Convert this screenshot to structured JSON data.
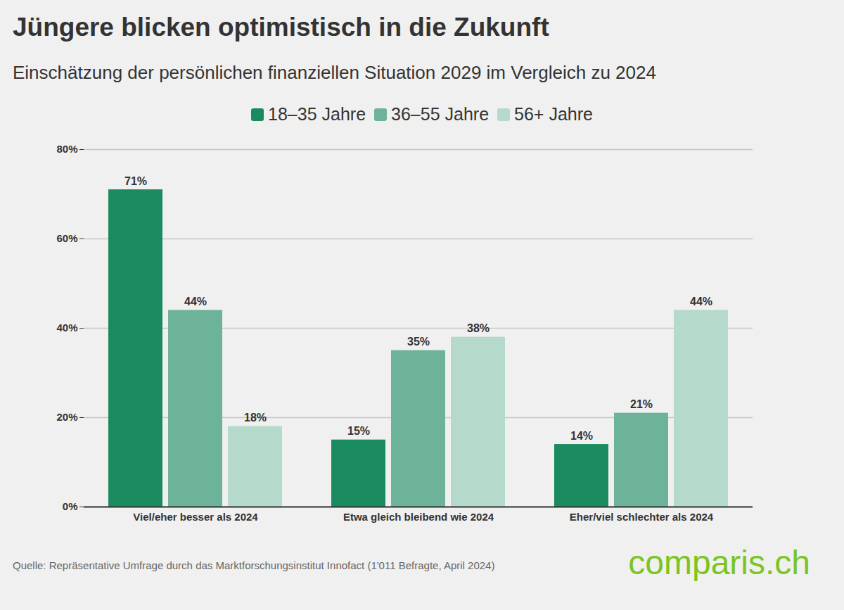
{
  "chart_data": {
    "type": "bar",
    "title": "Jüngere blicken optimistisch in die Zukunft",
    "subtitle": "Einschätzung der persönlichen finanziellen Situation 2029 im Vergleich zu 2024",
    "source": "Quelle: Repräsentative Umfrage durch das Marktforschungsinstitut Innofact (1'011 Befragte, April 2024)",
    "logo": "comparis.ch",
    "categories": [
      "Viel/eher besser als 2024",
      "Etwa gleich bleibend wie 2024",
      "Eher/viel schlechter als 2024"
    ],
    "series": [
      {
        "name": "18–35 Jahre",
        "color": "#1a8a5f",
        "values": [
          71,
          15,
          14
        ],
        "value_labels": [
          "71%",
          "15%",
          "14%"
        ]
      },
      {
        "name": "36–55 Jahre",
        "color": "#6db39a",
        "values": [
          44,
          35,
          21
        ],
        "value_labels": [
          "44%",
          "35%",
          "21%"
        ]
      },
      {
        "name": "56+ Jahre",
        "color": "#b5dacb",
        "values": [
          18,
          38,
          44
        ],
        "value_labels": [
          "18%",
          "38%",
          "44%"
        ]
      }
    ],
    "ylim": [
      0,
      80
    ],
    "yticks": [
      {
        "value": 0,
        "label": "0%"
      },
      {
        "value": 20,
        "label": "20%"
      },
      {
        "value": 40,
        "label": "40%"
      },
      {
        "value": 60,
        "label": "60%"
      },
      {
        "value": 80,
        "label": "80%"
      }
    ],
    "grid": true,
    "legend": "top",
    "data_labels": true
  }
}
